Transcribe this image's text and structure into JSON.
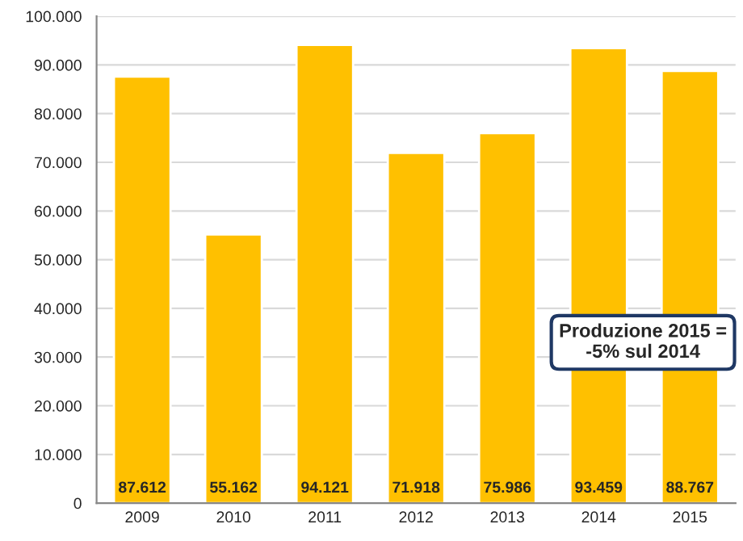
{
  "chart_data": {
    "type": "bar",
    "categories": [
      "2009",
      "2010",
      "2011",
      "2012",
      "2013",
      "2014",
      "2015"
    ],
    "values": [
      87612,
      55162,
      94121,
      71918,
      75986,
      93459,
      88767
    ],
    "value_labels": [
      "87.612",
      "55.162",
      "94.121",
      "71.918",
      "75.986",
      "93.459",
      "88.767"
    ],
    "color": "#ffc000",
    "ylim": [
      0,
      100000
    ],
    "yticks": [
      {
        "value": 0,
        "label": "0"
      },
      {
        "value": 10000,
        "label": "10.000"
      },
      {
        "value": 20000,
        "label": "20.000"
      },
      {
        "value": 30000,
        "label": "30.000"
      },
      {
        "value": 40000,
        "label": "40.000"
      },
      {
        "value": 50000,
        "label": "50.000"
      },
      {
        "value": 60000,
        "label": "60.000"
      },
      {
        "value": 70000,
        "label": "70.000"
      },
      {
        "value": 80000,
        "label": "80.000"
      },
      {
        "value": 90000,
        "label": "90.000"
      },
      {
        "value": 100000,
        "label": "100.000"
      }
    ],
    "grid": "y",
    "annotations": [
      "Produzione 2015 =\n-5% sul 2014"
    ]
  }
}
